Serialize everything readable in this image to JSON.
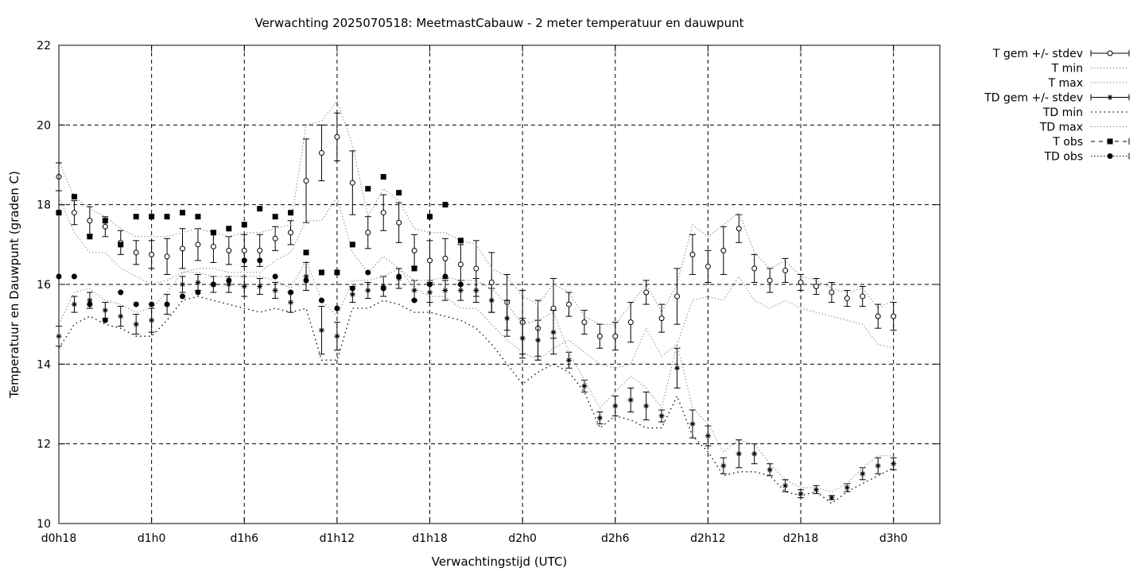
{
  "chart_data": {
    "type": "line",
    "title": "Verwachting 2025070518: MeetmastCabauw - 2 meter temperatuur en dauwpunt",
    "xlabel": "Verwachtingstijd (UTC)",
    "ylabel": "Temperatuur en Dauwpunt (graden C)",
    "xlim": [
      18,
      75
    ],
    "ylim": [
      10,
      22
    ],
    "grid": true,
    "legend_position": "outside-top-right",
    "x_ticks": [
      {
        "x": 18,
        "label": "d0h18"
      },
      {
        "x": 24,
        "label": "d1h0"
      },
      {
        "x": 30,
        "label": "d1h6"
      },
      {
        "x": 36,
        "label": "d1h12"
      },
      {
        "x": 42,
        "label": "d1h18"
      },
      {
        "x": 48,
        "label": "d2h0"
      },
      {
        "x": 54,
        "label": "d2h6"
      },
      {
        "x": 60,
        "label": "d2h12"
      },
      {
        "x": 66,
        "label": "d2h18"
      },
      {
        "x": 72,
        "label": "d3h0"
      }
    ],
    "y_ticks": [
      {
        "y": 10,
        "label": "10"
      },
      {
        "y": 12,
        "label": "12"
      },
      {
        "y": 14,
        "label": "14"
      },
      {
        "y": 16,
        "label": "16"
      },
      {
        "y": 18,
        "label": "18"
      },
      {
        "y": 20,
        "label": "20"
      },
      {
        "y": 22,
        "label": "22"
      }
    ],
    "series": [
      {
        "name": "T gem +/- stdev",
        "style": "errorbar-circle",
        "x": [
          18,
          19,
          20,
          21,
          22,
          23,
          24,
          25,
          26,
          27,
          28,
          29,
          30,
          31,
          32,
          33,
          34,
          35,
          36,
          37,
          38,
          39,
          40,
          41,
          42,
          43,
          44,
          45,
          46,
          47,
          48,
          49,
          50,
          51,
          52,
          53,
          54,
          55,
          56,
          57,
          58,
          59,
          60,
          61,
          62,
          63,
          64,
          65,
          66,
          67,
          68,
          69,
          70,
          71,
          72
        ],
        "y": [
          18.7,
          17.8,
          17.6,
          17.45,
          17.05,
          16.8,
          16.75,
          16.7,
          16.9,
          17.0,
          16.95,
          16.85,
          16.85,
          16.85,
          17.15,
          17.3,
          18.6,
          19.3,
          19.7,
          18.55,
          17.3,
          17.8,
          17.55,
          16.85,
          16.6,
          16.65,
          16.5,
          16.4,
          16.05,
          15.55,
          15.05,
          14.9,
          15.4,
          15.5,
          15.05,
          14.7,
          14.7,
          15.05,
          15.8,
          15.15,
          15.7,
          16.75,
          16.45,
          16.85,
          17.4,
          16.4,
          16.1,
          16.35,
          16.05,
          15.95,
          15.8,
          15.65,
          15.7,
          15.2,
          15.2
        ],
        "err": [
          0.35,
          0.3,
          0.35,
          0.25,
          0.3,
          0.3,
          0.35,
          0.45,
          0.5,
          0.4,
          0.4,
          0.35,
          0.4,
          0.4,
          0.3,
          0.3,
          1.05,
          0.7,
          0.6,
          0.8,
          0.4,
          0.45,
          0.5,
          0.4,
          0.5,
          0.5,
          0.5,
          0.7,
          0.75,
          0.7,
          0.8,
          0.7,
          0.75,
          0.3,
          0.3,
          0.3,
          0.35,
          0.5,
          0.3,
          0.35,
          0.7,
          0.5,
          0.4,
          0.6,
          0.35,
          0.35,
          0.3,
          0.3,
          0.2,
          0.2,
          0.25,
          0.2,
          0.25,
          0.3,
          0.35
        ]
      },
      {
        "name": "T min",
        "style": "dotted-line",
        "x": [
          18,
          19,
          20,
          21,
          22,
          23,
          24,
          25,
          26,
          27,
          28,
          29,
          30,
          31,
          32,
          33,
          34,
          35,
          36,
          37,
          38,
          39,
          40,
          41,
          42,
          43,
          44,
          45,
          46,
          47,
          48,
          49,
          50,
          51,
          52,
          53,
          54,
          55,
          56,
          57,
          58,
          59,
          60,
          61,
          62,
          63,
          64,
          65,
          66,
          67,
          68,
          69,
          70,
          71,
          72
        ],
        "y": [
          18.2,
          17.3,
          16.8,
          16.8,
          16.4,
          16.2,
          16.0,
          16.1,
          16.3,
          16.4,
          16.4,
          16.3,
          16.3,
          16.3,
          16.6,
          16.8,
          17.6,
          17.6,
          18.2,
          16.8,
          16.3,
          16.7,
          16.4,
          15.9,
          15.7,
          15.7,
          15.4,
          15.4,
          15.0,
          14.6,
          14.3,
          14.1,
          14.4,
          14.6,
          14.3,
          14.0,
          13.9,
          14.0,
          14.9,
          14.2,
          14.5,
          15.6,
          15.7,
          15.6,
          16.2,
          15.6,
          15.4,
          15.6,
          15.4,
          15.3,
          15.2,
          15.1,
          15.0,
          14.5,
          14.4
        ]
      },
      {
        "name": "T max",
        "style": "dotted-line",
        "x": [
          18,
          19,
          20,
          21,
          22,
          23,
          24,
          25,
          26,
          27,
          28,
          29,
          30,
          31,
          32,
          33,
          34,
          35,
          36,
          37,
          38,
          39,
          40,
          41,
          42,
          43,
          44,
          45,
          46,
          47,
          48,
          49,
          50,
          51,
          52,
          53,
          54,
          55,
          56,
          57,
          58,
          59,
          60,
          61,
          62,
          63,
          64,
          65,
          66,
          67,
          68,
          69,
          70,
          71,
          72
        ],
        "y": [
          19.1,
          18.2,
          17.9,
          17.7,
          17.4,
          17.2,
          17.2,
          17.2,
          17.3,
          17.4,
          17.3,
          17.2,
          17.3,
          17.3,
          17.4,
          17.5,
          20.0,
          20.1,
          20.6,
          19.5,
          17.7,
          18.4,
          18.1,
          17.4,
          17.3,
          17.3,
          17.1,
          17.0,
          16.4,
          16.2,
          15.7,
          15.5,
          16.0,
          15.8,
          15.2,
          15.0,
          15.0,
          15.5,
          16.0,
          15.3,
          16.0,
          17.5,
          17.2,
          17.5,
          17.8,
          16.8,
          16.4,
          16.6,
          16.2,
          16.1,
          15.9,
          15.8,
          15.9,
          15.4,
          15.6
        ]
      },
      {
        "name": "TD gem +/- stdev",
        "style": "errorbar-star",
        "x": [
          18,
          19,
          20,
          21,
          22,
          23,
          24,
          25,
          26,
          27,
          28,
          29,
          30,
          31,
          32,
          33,
          34,
          35,
          36,
          37,
          38,
          39,
          40,
          41,
          42,
          43,
          44,
          45,
          46,
          47,
          48,
          49,
          50,
          51,
          52,
          53,
          54,
          55,
          56,
          57,
          58,
          59,
          60,
          61,
          62,
          63,
          64,
          65,
          66,
          67,
          68,
          69,
          70,
          71,
          72
        ],
        "y": [
          14.7,
          15.5,
          15.6,
          15.35,
          15.2,
          15.0,
          15.1,
          15.5,
          16.0,
          16.05,
          16.0,
          16.0,
          15.95,
          15.95,
          15.85,
          15.55,
          16.2,
          14.85,
          14.7,
          15.75,
          15.85,
          15.95,
          16.15,
          15.85,
          15.8,
          15.85,
          15.85,
          15.85,
          15.6,
          15.15,
          14.65,
          14.6,
          14.8,
          14.1,
          13.45,
          12.65,
          12.95,
          13.1,
          12.95,
          12.7,
          13.9,
          12.5,
          12.2,
          11.45,
          11.75,
          11.75,
          11.35,
          10.95,
          10.75,
          10.85,
          10.65,
          10.9,
          11.25,
          11.45,
          11.5
        ],
        "err": [
          0.25,
          0.2,
          0.2,
          0.2,
          0.25,
          0.25,
          0.3,
          0.25,
          0.2,
          0.2,
          0.2,
          0.2,
          0.25,
          0.2,
          0.2,
          0.25,
          0.35,
          0.6,
          0.35,
          0.2,
          0.2,
          0.25,
          0.25,
          0.25,
          0.25,
          0.25,
          0.25,
          0.3,
          0.3,
          0.45,
          0.5,
          0.5,
          0.55,
          0.2,
          0.15,
          0.15,
          0.25,
          0.3,
          0.35,
          0.15,
          0.5,
          0.35,
          0.25,
          0.2,
          0.35,
          0.25,
          0.15,
          0.15,
          0.1,
          0.1,
          0.05,
          0.1,
          0.15,
          0.2,
          0.15
        ]
      },
      {
        "name": "TD min",
        "style": "sparse-dotted-line",
        "x": [
          18,
          19,
          20,
          21,
          22,
          23,
          24,
          25,
          26,
          27,
          28,
          29,
          30,
          31,
          32,
          33,
          34,
          35,
          36,
          37,
          38,
          39,
          40,
          41,
          42,
          43,
          44,
          45,
          46,
          47,
          48,
          49,
          50,
          51,
          52,
          53,
          54,
          55,
          56,
          57,
          58,
          59,
          60,
          61,
          62,
          63,
          64,
          65,
          66,
          67,
          68,
          69,
          70,
          71,
          72
        ],
        "y": [
          14.4,
          15.0,
          15.2,
          15.0,
          14.9,
          14.7,
          14.7,
          15.1,
          15.6,
          15.7,
          15.6,
          15.5,
          15.4,
          15.3,
          15.4,
          15.3,
          15.4,
          14.1,
          14.1,
          15.4,
          15.4,
          15.6,
          15.5,
          15.3,
          15.3,
          15.2,
          15.1,
          14.9,
          14.5,
          14.0,
          13.5,
          13.8,
          14.0,
          13.8,
          13.3,
          12.4,
          12.7,
          12.6,
          12.4,
          12.4,
          13.2,
          12.2,
          11.8,
          11.2,
          11.3,
          11.3,
          11.2,
          10.8,
          10.7,
          10.8,
          10.5,
          10.8,
          11.0,
          11.2,
          11.4
        ]
      },
      {
        "name": "TD max",
        "style": "dotted-line",
        "x": [
          18,
          19,
          20,
          21,
          22,
          23,
          24,
          25,
          26,
          27,
          28,
          29,
          30,
          31,
          32,
          33,
          34,
          35,
          36,
          37,
          38,
          39,
          40,
          41,
          42,
          43,
          44,
          45,
          46,
          47,
          48,
          49,
          50,
          51,
          52,
          53,
          54,
          55,
          56,
          57,
          58,
          59,
          60,
          61,
          62,
          63,
          64,
          65,
          66,
          67,
          68,
          69,
          70,
          71,
          72
        ],
        "y": [
          15.0,
          15.8,
          15.9,
          15.6,
          15.5,
          15.3,
          15.4,
          15.8,
          16.3,
          16.3,
          16.2,
          16.2,
          16.2,
          16.2,
          16.1,
          15.9,
          16.6,
          15.6,
          15.2,
          16.1,
          16.1,
          16.2,
          16.4,
          16.1,
          16.1,
          16.2,
          16.1,
          16.1,
          15.9,
          15.5,
          15.0,
          15.1,
          15.3,
          14.3,
          13.6,
          12.9,
          13.3,
          13.7,
          13.4,
          12.9,
          14.5,
          12.9,
          12.5,
          11.8,
          12.1,
          12.0,
          11.5,
          11.1,
          10.9,
          10.9,
          10.8,
          11.0,
          11.4,
          11.7,
          11.7
        ]
      },
      {
        "name": "T obs",
        "style": "square-markers",
        "x": [
          18,
          19,
          20,
          21,
          22,
          23,
          24,
          25,
          26,
          27,
          28,
          29,
          30,
          31,
          32,
          33,
          34,
          35,
          36,
          37,
          38,
          39,
          40,
          41,
          42,
          43,
          44
        ],
        "y": [
          17.8,
          18.2,
          17.2,
          17.6,
          17.0,
          17.7,
          17.7,
          17.7,
          17.8,
          17.7,
          17.3,
          17.4,
          17.5,
          17.9,
          17.7,
          17.8,
          16.8,
          16.3,
          16.3,
          17.0,
          18.4,
          18.7,
          18.3,
          16.4,
          17.7,
          18.0,
          17.1
        ]
      },
      {
        "name": "TD obs",
        "style": "circle-markers",
        "x": [
          18,
          19,
          20,
          21,
          22,
          23,
          24,
          25,
          26,
          27,
          28,
          29,
          30,
          31,
          32,
          33,
          34,
          35,
          36,
          37,
          38,
          39,
          40,
          41,
          42,
          43,
          44
        ],
        "y": [
          16.2,
          16.2,
          15.5,
          15.1,
          15.8,
          15.5,
          15.5,
          15.5,
          15.7,
          15.8,
          16.0,
          16.1,
          16.6,
          16.6,
          16.2,
          15.8,
          16.1,
          15.6,
          15.4,
          15.9,
          16.3,
          15.9,
          16.2,
          15.6,
          16.0,
          16.2,
          16.0
        ]
      }
    ]
  }
}
